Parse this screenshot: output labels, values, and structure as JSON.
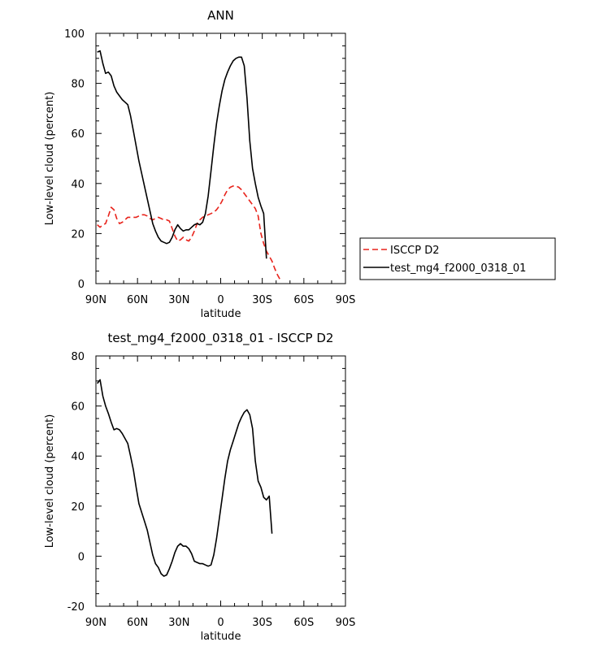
{
  "chart_data": [
    {
      "type": "line",
      "title": "ANN",
      "xlabel": "latitude",
      "ylabel": "Low-level cloud (percent)",
      "xlim": [
        90,
        -90
      ],
      "ylim": [
        0,
        100
      ],
      "x_tick_values": [
        90,
        60,
        30,
        0,
        -30,
        -60,
        -90
      ],
      "x_tick_labels": [
        "90N",
        "60N",
        "30N",
        "0",
        "30S",
        "60S",
        "90S"
      ],
      "y_tick_values": [
        0,
        20,
        40,
        60,
        80,
        100
      ],
      "y_tick_labels": [
        "0",
        "20",
        "40",
        "60",
        "80",
        "100"
      ],
      "legend_position": "right",
      "series": [
        {
          "name": "ISCCP D2",
          "color": "#e8231b",
          "dash": "dashed",
          "points": [
            [
              89,
              23.5
            ],
            [
              87,
              22.5
            ],
            [
              85,
              23.5
            ],
            [
              83,
              24
            ],
            [
              81,
              27
            ],
            [
              79,
              30.5
            ],
            [
              77,
              29.5
            ],
            [
              75,
              26
            ],
            [
              73,
              24
            ],
            [
              71,
              24.5
            ],
            [
              69,
              25.5
            ],
            [
              67,
              26.5
            ],
            [
              65,
              26.5
            ],
            [
              63,
              26.5
            ],
            [
              61,
              26.5
            ],
            [
              59,
              27
            ],
            [
              57,
              27.5
            ],
            [
              55,
              27.5
            ],
            [
              53,
              27
            ],
            [
              51,
              26
            ],
            [
              49,
              25.5
            ],
            [
              47,
              26
            ],
            [
              45,
              26.5
            ],
            [
              43,
              26
            ],
            [
              41,
              25.5
            ],
            [
              39,
              25.5
            ],
            [
              37,
              25
            ],
            [
              35,
              22
            ],
            [
              33,
              19
            ],
            [
              31,
              17
            ],
            [
              29,
              17.5
            ],
            [
              27,
              18.5
            ],
            [
              25,
              17.5
            ],
            [
              23,
              17
            ],
            [
              21,
              18.5
            ],
            [
              19,
              21
            ],
            [
              17,
              24
            ],
            [
              15,
              25.5
            ],
            [
              13,
              26.5
            ],
            [
              11,
              27
            ],
            [
              9,
              27.5
            ],
            [
              7,
              28
            ],
            [
              5,
              28.5
            ],
            [
              3,
              29.5
            ],
            [
              1,
              31
            ],
            [
              -1,
              33
            ],
            [
              -3,
              35.5
            ],
            [
              -5,
              37.5
            ],
            [
              -7,
              38.5
            ],
            [
              -9,
              39
            ],
            [
              -11,
              39
            ],
            [
              -13,
              38.5
            ],
            [
              -15,
              37.5
            ],
            [
              -17,
              36
            ],
            [
              -19,
              34.5
            ],
            [
              -21,
              33
            ],
            [
              -23,
              31.5
            ],
            [
              -25,
              30
            ],
            [
              -27,
              27
            ],
            [
              -29,
              20
            ],
            [
              -31,
              16
            ],
            [
              -33,
              13
            ],
            [
              -35,
              11
            ],
            [
              -37,
              9
            ],
            [
              -39,
              6
            ],
            [
              -41,
              3.5
            ],
            [
              -43,
              1.5
            ]
          ]
        },
        {
          "name": "test_mg4_f2000_0318_01",
          "color": "#000000",
          "dash": "solid",
          "points": [
            [
              89,
              92.5
            ],
            [
              87,
              93
            ],
            [
              85,
              88
            ],
            [
              83,
              84
            ],
            [
              81,
              84.5
            ],
            [
              79,
              83
            ],
            [
              77,
              79
            ],
            [
              75,
              76.5
            ],
            [
              73,
              75
            ],
            [
              71,
              73.5
            ],
            [
              69,
              72.5
            ],
            [
              67,
              71.5
            ],
            [
              65,
              67
            ],
            [
              63,
              61
            ],
            [
              61,
              55
            ],
            [
              59,
              49
            ],
            [
              57,
              44
            ],
            [
              55,
              39
            ],
            [
              53,
              34
            ],
            [
              51,
              29
            ],
            [
              49,
              24
            ],
            [
              47,
              21
            ],
            [
              45,
              18.5
            ],
            [
              43,
              17
            ],
            [
              41,
              16.5
            ],
            [
              39,
              16
            ],
            [
              37,
              16.5
            ],
            [
              35,
              18.5
            ],
            [
              33,
              21.5
            ],
            [
              31,
              23.5
            ],
            [
              29,
              22
            ],
            [
              27,
              21
            ],
            [
              25,
              21.5
            ],
            [
              23,
              21.5
            ],
            [
              21,
              22.5
            ],
            [
              19,
              23.5
            ],
            [
              17,
              24
            ],
            [
              15,
              23.5
            ],
            [
              13,
              24.5
            ],
            [
              11,
              28
            ],
            [
              9,
              35
            ],
            [
              7,
              45
            ],
            [
              5,
              55
            ],
            [
              3,
              64
            ],
            [
              1,
              71
            ],
            [
              -1,
              77
            ],
            [
              -3,
              81.5
            ],
            [
              -5,
              84.5
            ],
            [
              -7,
              87
            ],
            [
              -9,
              89
            ],
            [
              -11,
              90
            ],
            [
              -13,
              90.5
            ],
            [
              -15,
              90.5
            ],
            [
              -17,
              87
            ],
            [
              -19,
              74
            ],
            [
              -21,
              57
            ],
            [
              -23,
              46
            ],
            [
              -25,
              40
            ],
            [
              -27,
              34.5
            ],
            [
              -29,
              31
            ],
            [
              -31,
              28
            ],
            [
              -33,
              10
            ]
          ]
        }
      ]
    },
    {
      "type": "line",
      "title": "test_mg4_f2000_0318_01 - ISCCP D2",
      "xlabel": "latitude",
      "ylabel": "Low-level cloud (percent)",
      "xlim": [
        90,
        -90
      ],
      "ylim": [
        -20,
        80
      ],
      "x_tick_values": [
        90,
        60,
        30,
        0,
        -30,
        -60,
        -90
      ],
      "x_tick_labels": [
        "90N",
        "60N",
        "30N",
        "0",
        "30S",
        "60S",
        "90S"
      ],
      "y_tick_values": [
        -20,
        0,
        20,
        40,
        60,
        80
      ],
      "y_tick_labels": [
        "-20",
        "0",
        "20",
        "40",
        "60",
        "80"
      ],
      "series": [
        {
          "color": "#000000",
          "dash": "solid",
          "points": [
            [
              89,
              69
            ],
            [
              87,
              70.5
            ],
            [
              85,
              64
            ],
            [
              83,
              60
            ],
            [
              81,
              57
            ],
            [
              79,
              53.5
            ],
            [
              77,
              50.5
            ],
            [
              75,
              51
            ],
            [
              73,
              50.5
            ],
            [
              71,
              49
            ],
            [
              69,
              47
            ],
            [
              67,
              45
            ],
            [
              65,
              40
            ],
            [
              63,
              34.5
            ],
            [
              61,
              27.5
            ],
            [
              59,
              21
            ],
            [
              57,
              17.5
            ],
            [
              55,
              14
            ],
            [
              53,
              10.5
            ],
            [
              51,
              5.5
            ],
            [
              49,
              0.5
            ],
            [
              47,
              -3
            ],
            [
              45,
              -4.5
            ],
            [
              43,
              -7
            ],
            [
              41,
              -8
            ],
            [
              39,
              -7.5
            ],
            [
              37,
              -5
            ],
            [
              35,
              -2
            ],
            [
              33,
              1.5
            ],
            [
              31,
              4
            ],
            [
              29,
              5
            ],
            [
              27,
              4
            ],
            [
              25,
              4
            ],
            [
              23,
              3
            ],
            [
              21,
              1
            ],
            [
              19,
              -2
            ],
            [
              17,
              -2.5
            ],
            [
              15,
              -3
            ],
            [
              13,
              -3
            ],
            [
              11,
              -3.5
            ],
            [
              9,
              -4
            ],
            [
              7,
              -3.5
            ],
            [
              5,
              0.5
            ],
            [
              3,
              7
            ],
            [
              1,
              15
            ],
            [
              -1,
              23
            ],
            [
              -3,
              31
            ],
            [
              -5,
              38
            ],
            [
              -7,
              42.5
            ],
            [
              -9,
              46
            ],
            [
              -11,
              49.5
            ],
            [
              -13,
              53
            ],
            [
              -15,
              55.5
            ],
            [
              -17,
              57.5
            ],
            [
              -19,
              58.5
            ],
            [
              -21,
              56.5
            ],
            [
              -23,
              51
            ],
            [
              -25,
              38
            ],
            [
              -27,
              30
            ],
            [
              -29,
              27.5
            ],
            [
              -31,
              23.5
            ],
            [
              -33,
              22.5
            ],
            [
              -35,
              24
            ],
            [
              -37,
              9
            ]
          ]
        }
      ]
    }
  ]
}
